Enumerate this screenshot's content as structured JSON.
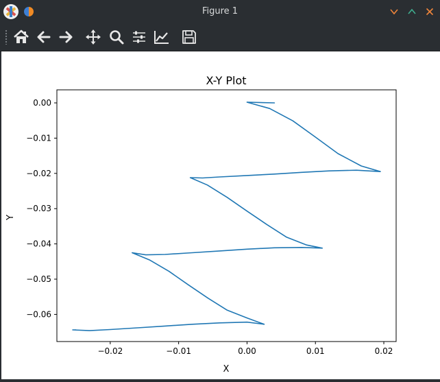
{
  "window": {
    "title": "Figure 1"
  },
  "toolbar": {
    "buttons": [
      {
        "name": "home-button",
        "icon": "home-icon"
      },
      {
        "name": "back-button",
        "icon": "arrow-left-icon"
      },
      {
        "name": "forward-button",
        "icon": "arrow-right-icon"
      },
      {
        "name": "pan-button",
        "icon": "move-icon"
      },
      {
        "name": "zoom-button",
        "icon": "magnifier-icon"
      },
      {
        "name": "configure-subplots-button",
        "icon": "sliders-icon"
      },
      {
        "name": "edit-axis-button",
        "icon": "line-chart-icon"
      },
      {
        "name": "save-button",
        "icon": "floppy-disk-icon"
      }
    ]
  },
  "chart_data": {
    "type": "line",
    "title": "X-Y Plot",
    "xlabel": "X",
    "ylabel": "Y",
    "xlim": [
      -0.0278,
      0.0218
    ],
    "ylim": [
      -0.0677,
      0.0037
    ],
    "xticks": [
      -0.02,
      -0.01,
      0.0,
      0.01,
      0.02
    ],
    "xtick_labels": [
      "−0.02",
      "−0.01",
      "0.00",
      "0.01",
      "0.02"
    ],
    "yticks": [
      0.0,
      -0.01,
      -0.02,
      -0.03,
      -0.04,
      -0.05,
      -0.06
    ],
    "ytick_labels": [
      "0.00",
      "−0.01",
      "−0.02",
      "−0.03",
      "−0.04",
      "−0.05",
      "−0.06"
    ],
    "grid": false,
    "color": "#1f77b4",
    "series": [
      {
        "x": [
          0.004,
          0.0,
          0.0033,
          0.0067,
          0.01,
          0.0133,
          0.0167,
          0.0195,
          0.016,
          0.012,
          0.008,
          0.004,
          0.0,
          -0.004,
          -0.0065,
          -0.0083,
          -0.0058,
          -0.0029,
          0.0,
          0.0029,
          0.0058,
          0.0087,
          0.011,
          0.008,
          0.004,
          0.0,
          -0.004,
          -0.008,
          -0.012,
          -0.0148,
          -0.0168,
          -0.0142,
          -0.0114,
          -0.0086,
          -0.0057,
          -0.0029,
          0.0,
          0.0025,
          0.0,
          -0.004,
          -0.008,
          -0.012,
          -0.016,
          -0.02,
          -0.023,
          -0.0255,
          -0.025
        ],
        "y": [
          0.0,
          0.0002,
          -0.0016,
          -0.0051,
          -0.0097,
          -0.0144,
          -0.0179,
          -0.0195,
          -0.0191,
          -0.0193,
          -0.0197,
          -0.0202,
          -0.0206,
          -0.021,
          -0.0213,
          -0.0212,
          -0.0233,
          -0.0268,
          -0.0307,
          -0.0345,
          -0.0381,
          -0.0403,
          -0.0412,
          -0.041,
          -0.0411,
          -0.0415,
          -0.042,
          -0.0425,
          -0.043,
          -0.0431,
          -0.0425,
          -0.0446,
          -0.0478,
          -0.0516,
          -0.0554,
          -0.0588,
          -0.061,
          -0.0628,
          -0.0622,
          -0.0624,
          -0.0628,
          -0.0633,
          -0.0638,
          -0.0643,
          -0.0646,
          -0.0644,
          -0.0644
        ]
      }
    ]
  }
}
